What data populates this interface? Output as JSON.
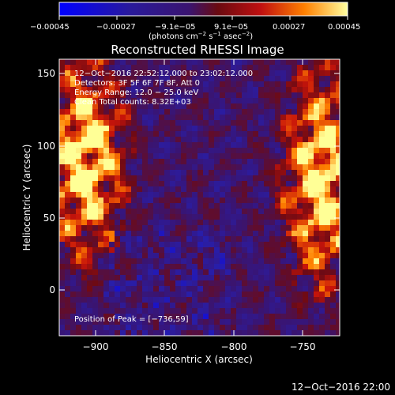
{
  "colorbar": {
    "ticks": [
      "−0.00045",
      "−0.00027",
      "−9.1e−05",
      "9.1e−05",
      "0.00027",
      "0.00045"
    ],
    "unit_label": "(photons cm",
    "unit_sup1": "−2",
    "unit_mid": " s",
    "unit_sup2": "−1",
    "unit_mid2": " asec",
    "unit_sup3": "−2",
    "unit_end": ")"
  },
  "title": "Reconstructed RHESSI Image",
  "info": {
    "line1": "12−Oct−2016 22:52:12.000 to 23:02:12.000",
    "line2": "Detectors: 3F 5F 6F 7F 8F, Att 0",
    "line3": "Energy Range: 12.0 − 25.0 keV",
    "line4": "Clean    Total counts: 8.32E+03"
  },
  "peak_text": "Position of Peak = [−736,59]",
  "axes": {
    "xlabel": "Heliocentric X (arcsec)",
    "ylabel": "Heliocentric Y (arcsec)",
    "xticks": [
      "−900",
      "−850",
      "−800",
      "−750"
    ],
    "yticks": [
      "150",
      "100",
      "50",
      "0"
    ]
  },
  "footer_timestamp": "12−Oct−2016 22:00",
  "colors": {
    "negative_end": "#0000ff",
    "zero": "#3a1470",
    "mid": "#b01010",
    "high": "#ff8c00",
    "max": "#ffff80"
  }
}
